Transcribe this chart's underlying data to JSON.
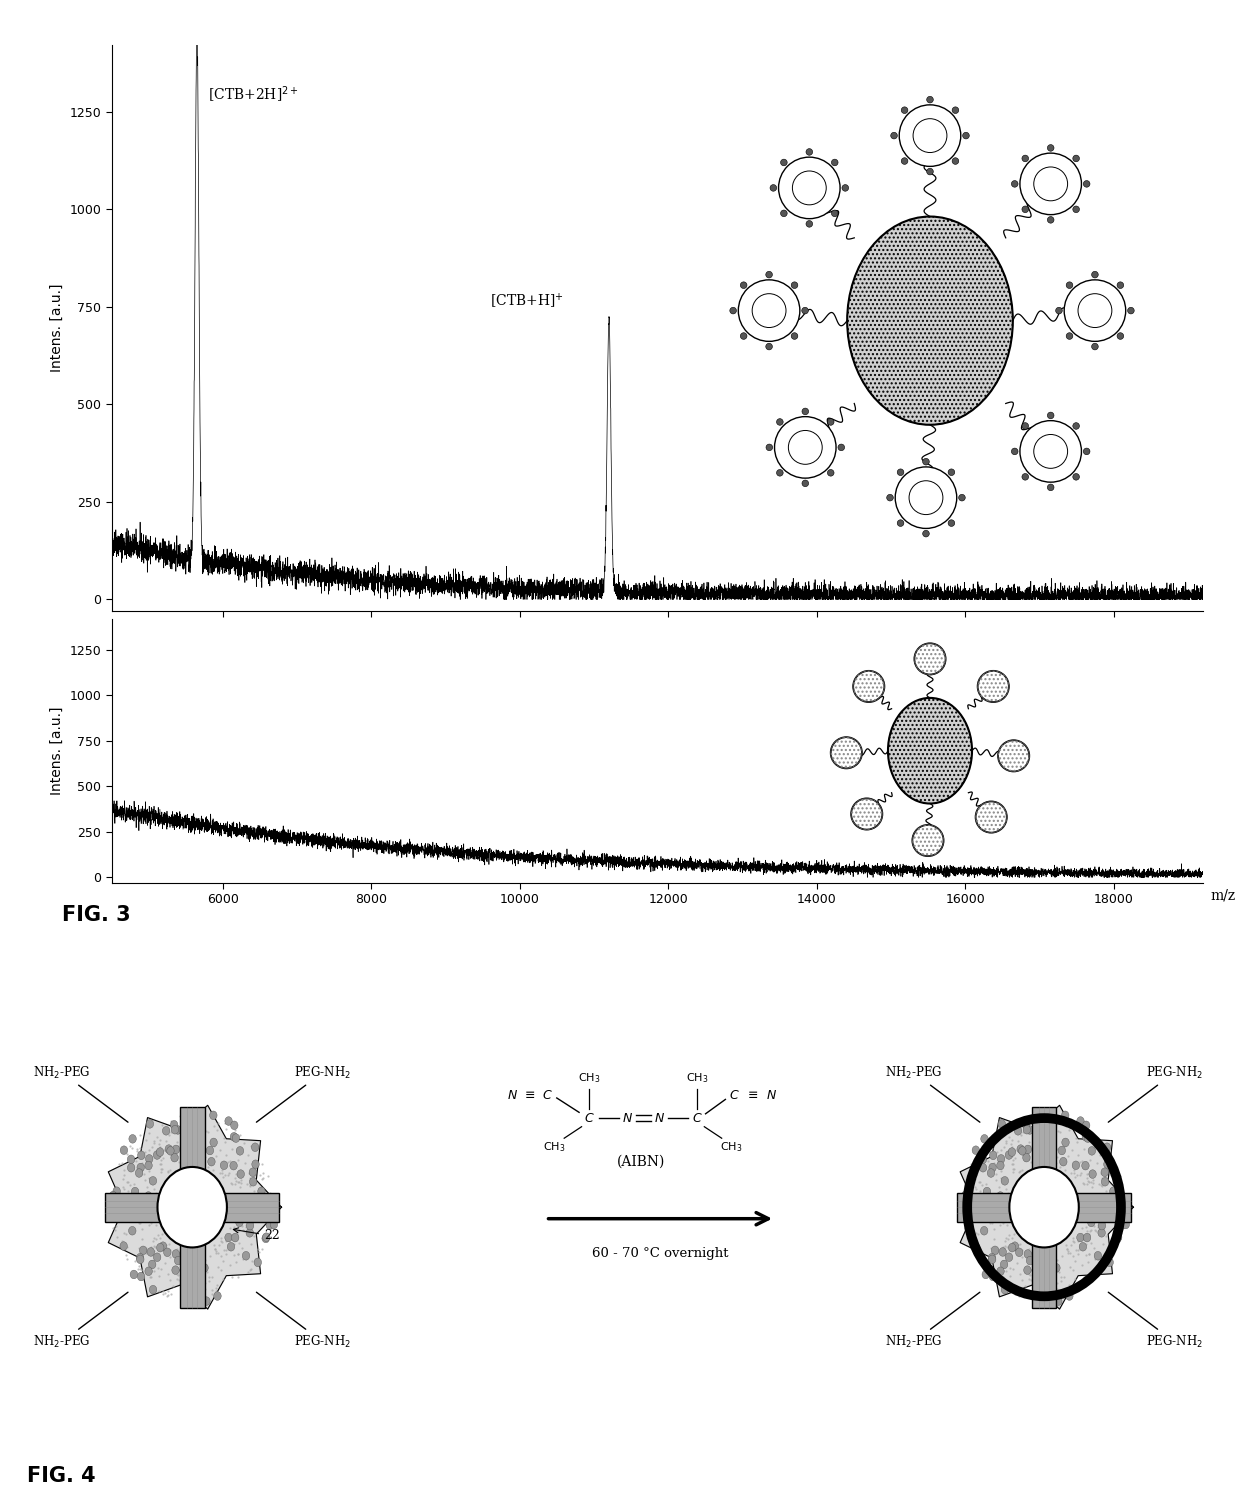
{
  "fig_width": 12.4,
  "fig_height": 15.09,
  "background_color": "#ffffff",
  "top_spectrum": {
    "ylabel": "Intens. [a.u.]",
    "yticks": [
      0,
      250,
      500,
      750,
      1000,
      1250
    ],
    "ylim": [
      -30,
      1420
    ],
    "peak1_x": 5650,
    "peak1_y": 1380,
    "peak1_label": "[CTB+2H]$^{2+}$",
    "peak2_x": 11200,
    "peak2_y": 710,
    "peak2_label": "[CTB+H]$^{+}$"
  },
  "bottom_spectrum": {
    "ylabel": "Intens. [a.u.]",
    "yticks": [
      0,
      250,
      500,
      750,
      1000,
      1250
    ],
    "ylim": [
      -30,
      1420
    ]
  },
  "shared_xlabel": "m/z",
  "x_ticks": [
    6000,
    8000,
    10000,
    12000,
    14000,
    16000,
    18000
  ],
  "xlim": [
    4500,
    19200
  ],
  "fig3_label": "FIG. 3",
  "fig4_label": "FIG. 4",
  "aibn_label": "(AIBN)",
  "temp_label": "60 - 70 °C overnight",
  "label_22": "22"
}
